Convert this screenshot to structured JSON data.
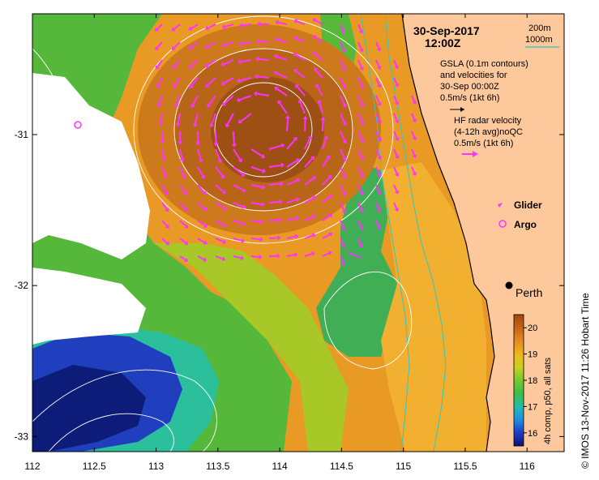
{
  "header": {
    "date": "30-Sep-2017",
    "time": "12:00Z"
  },
  "depth_legend": {
    "contour_a": "200m",
    "contour_b": "1000m",
    "line_color": "#2ec8c8"
  },
  "gsla_legend": {
    "line1": "GSLA (0.1m contours)",
    "line2": "and velocities for",
    "line3": "30-Sep 00:00Z",
    "scale": "0.5m/s (1kt 6h)"
  },
  "hf_legend": {
    "line1": "HF radar velocity",
    "line2": "(4-12h avg)noQC",
    "scale": "0.5m/s (1kt 6h)",
    "color": "#ff33ff"
  },
  "markers": {
    "glider_label": "Glider",
    "argo_label": "Argo",
    "city_label": "Perth",
    "color": "#ff33ff"
  },
  "colorbar": {
    "title": "4h comp, p50, all sats",
    "min": 15.5,
    "max": 20.5,
    "ticks": [
      "16",
      "17",
      "18",
      "19",
      "20"
    ],
    "tick_values": [
      16,
      17,
      18,
      19,
      20
    ]
  },
  "credit": "©  IMOS 13-Nov-2017 11:26 Hobart Time",
  "axes": {
    "lon_range": [
      112,
      116.3
    ],
    "lat_range": [
      -33.1,
      -30.2
    ],
    "x_ticks": [
      "112",
      "112.5",
      "113",
      "113.5",
      "114",
      "114.5",
      "115",
      "115.5",
      "116"
    ],
    "x_values": [
      112,
      112.5,
      113,
      113.5,
      114,
      114.5,
      115,
      115.5,
      116
    ],
    "y_ticks": [
      "-31",
      "-32",
      "-33"
    ],
    "y_values": [
      -31,
      -32,
      -33
    ]
  },
  "colors": {
    "land": "#fdc89b",
    "nodata": "#ffffff",
    "contour": "#ffffff",
    "velocity": "#ff33ff"
  }
}
